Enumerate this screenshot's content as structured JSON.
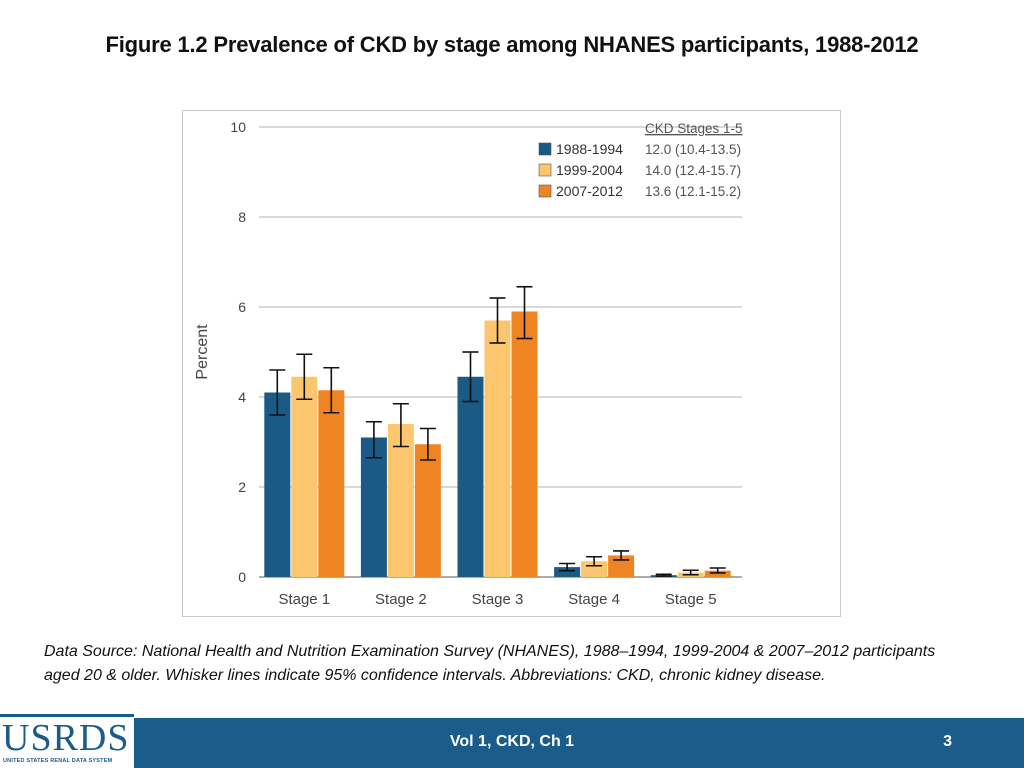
{
  "slide": {
    "title": "Figure 1.2  Prevalence of CKD by stage among NHANES participants, 1988-2012",
    "caption": "Data Source: National Health and Nutrition Examination Survey (NHANES), 1988–1994, 1999-2004 & 2007–2012 participants aged 20 & older. Whisker lines indicate 95% confidence intervals. Abbreviations: CKD, chronic kidney disease."
  },
  "footer": {
    "center_text": "Vol 1, CKD, Ch 1",
    "page_number": "3",
    "logo_text": "USRDS",
    "logo_subtext": "UNITED STATES RENAL DATA SYSTEM"
  },
  "colors": {
    "series_1988": "#1a5a85",
    "series_1999": "#fcc66e",
    "series_2007": "#ef8522",
    "footer_bar": "#1b5c8b"
  },
  "chart_data": {
    "type": "bar",
    "title": "",
    "xlabel": "",
    "ylabel": "Percent",
    "ylim": [
      0,
      10
    ],
    "yticks": [
      0,
      2,
      4,
      6,
      8,
      10
    ],
    "grid": true,
    "categories": [
      "Stage 1",
      "Stage 2",
      "Stage 3",
      "Stage 4",
      "Stage 5"
    ],
    "series": [
      {
        "name": "1988-1994",
        "color": "#1a5a85",
        "values": [
          4.1,
          3.1,
          4.45,
          0.22,
          0.04
        ],
        "ci_low": [
          3.6,
          2.65,
          3.9,
          0.14,
          0.02
        ],
        "ci_high": [
          4.6,
          3.45,
          5.0,
          0.3,
          0.06
        ]
      },
      {
        "name": "1999-2004",
        "color": "#fcc66e",
        "values": [
          4.45,
          3.4,
          5.7,
          0.35,
          0.1
        ],
        "ci_low": [
          3.95,
          2.9,
          5.2,
          0.25,
          0.05
        ],
        "ci_high": [
          4.95,
          3.85,
          6.2,
          0.45,
          0.15
        ]
      },
      {
        "name": "2007-2012",
        "color": "#ef8522",
        "values": [
          4.15,
          2.95,
          5.9,
          0.48,
          0.14
        ],
        "ci_low": [
          3.65,
          2.6,
          5.3,
          0.38,
          0.09
        ],
        "ci_high": [
          4.65,
          3.3,
          6.45,
          0.58,
          0.2
        ]
      }
    ],
    "legend": {
      "placement": "top-right",
      "header": "CKD Stages 1-5",
      "entries": [
        {
          "label": "1988-1994",
          "stat": "12.0 (10.4-13.5)"
        },
        {
          "label": "1999-2004",
          "stat": "14.0 (12.4-15.7)"
        },
        {
          "label": "2007-2012",
          "stat": "13.6 (12.1-15.2)"
        }
      ]
    }
  }
}
